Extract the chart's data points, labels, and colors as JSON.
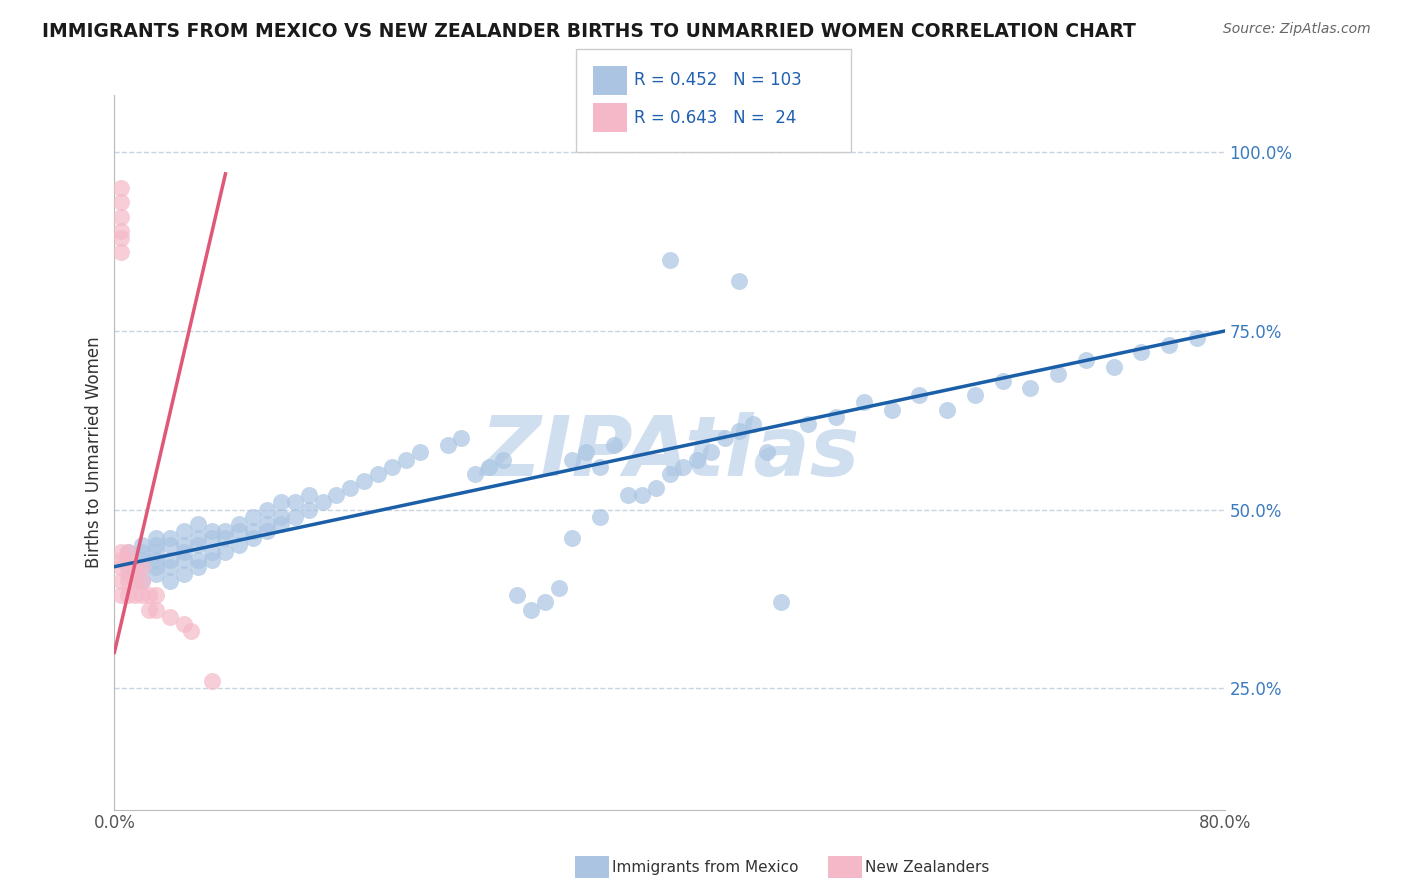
{
  "title": "IMMIGRANTS FROM MEXICO VS NEW ZEALANDER BIRTHS TO UNMARRIED WOMEN CORRELATION CHART",
  "source": "Source: ZipAtlas.com",
  "ylabel": "Births to Unmarried Women",
  "legend_label1": "Immigrants from Mexico",
  "legend_label2": "New Zealanders",
  "R1": 0.452,
  "N1": 103,
  "R2": 0.643,
  "N2": 24,
  "blue_color": "#aac4e2",
  "blue_line_color": "#1a5fa8",
  "pink_color": "#f5b8c8",
  "pink_line_color": "#e05878",
  "watermark": "ZIPAtlas",
  "watermark_color": "#d0dff0",
  "xlim": [
    0.0,
    0.8
  ],
  "ylim": [
    0.08,
    1.08
  ],
  "xtick_positions": [
    0.0,
    0.8
  ],
  "xtick_labels": [
    "0.0%",
    "80.0%"
  ],
  "ytick_values": [
    0.25,
    0.5,
    0.75,
    1.0
  ],
  "ytick_labels": [
    "25.0%",
    "50.0%",
    "75.0%",
    "100.0%"
  ],
  "grid_color": "#c8d4e0",
  "background": "#ffffff",
  "blue_scatter_x": [
    0.01,
    0.01,
    0.02,
    0.02,
    0.02,
    0.02,
    0.02,
    0.03,
    0.03,
    0.03,
    0.03,
    0.03,
    0.03,
    0.04,
    0.04,
    0.04,
    0.04,
    0.04,
    0.05,
    0.05,
    0.05,
    0.05,
    0.05,
    0.06,
    0.06,
    0.06,
    0.06,
    0.06,
    0.07,
    0.07,
    0.07,
    0.07,
    0.08,
    0.08,
    0.08,
    0.09,
    0.09,
    0.09,
    0.1,
    0.1,
    0.1,
    0.11,
    0.11,
    0.11,
    0.12,
    0.12,
    0.12,
    0.13,
    0.13,
    0.14,
    0.14,
    0.15,
    0.16,
    0.17,
    0.18,
    0.19,
    0.2,
    0.21,
    0.22,
    0.24,
    0.25,
    0.26,
    0.27,
    0.28,
    0.29,
    0.3,
    0.31,
    0.32,
    0.33,
    0.34,
    0.35,
    0.36,
    0.38,
    0.39,
    0.4,
    0.41,
    0.42,
    0.43,
    0.44,
    0.45,
    0.46,
    0.47,
    0.48,
    0.5,
    0.52,
    0.54,
    0.56,
    0.58,
    0.6,
    0.62,
    0.64,
    0.66,
    0.68,
    0.7,
    0.72,
    0.74,
    0.76,
    0.78,
    0.33,
    0.35,
    0.37,
    0.4,
    0.45
  ],
  "blue_scatter_y": [
    0.42,
    0.44,
    0.4,
    0.42,
    0.43,
    0.44,
    0.45,
    0.41,
    0.42,
    0.43,
    0.44,
    0.45,
    0.46,
    0.4,
    0.42,
    0.43,
    0.45,
    0.46,
    0.41,
    0.43,
    0.44,
    0.45,
    0.47,
    0.42,
    0.43,
    0.45,
    0.46,
    0.48,
    0.43,
    0.44,
    0.46,
    0.47,
    0.44,
    0.46,
    0.47,
    0.45,
    0.47,
    0.48,
    0.46,
    0.47,
    0.49,
    0.47,
    0.48,
    0.5,
    0.48,
    0.49,
    0.51,
    0.49,
    0.51,
    0.5,
    0.52,
    0.51,
    0.52,
    0.53,
    0.54,
    0.55,
    0.56,
    0.57,
    0.58,
    0.59,
    0.6,
    0.55,
    0.56,
    0.57,
    0.38,
    0.36,
    0.37,
    0.39,
    0.57,
    0.58,
    0.56,
    0.59,
    0.52,
    0.53,
    0.55,
    0.56,
    0.57,
    0.58,
    0.6,
    0.61,
    0.62,
    0.58,
    0.37,
    0.62,
    0.63,
    0.65,
    0.64,
    0.66,
    0.64,
    0.66,
    0.68,
    0.67,
    0.69,
    0.71,
    0.7,
    0.72,
    0.73,
    0.74,
    0.46,
    0.49,
    0.52,
    0.85,
    0.82
  ],
  "pink_scatter_x": [
    0.005,
    0.005,
    0.005,
    0.005,
    0.005,
    0.01,
    0.01,
    0.01,
    0.01,
    0.01,
    0.015,
    0.015,
    0.015,
    0.02,
    0.02,
    0.02,
    0.025,
    0.025,
    0.03,
    0.03,
    0.04,
    0.05,
    0.055,
    0.07
  ],
  "pink_scatter_y": [
    0.38,
    0.4,
    0.42,
    0.43,
    0.44,
    0.38,
    0.4,
    0.41,
    0.43,
    0.44,
    0.38,
    0.4,
    0.42,
    0.38,
    0.4,
    0.42,
    0.36,
    0.38,
    0.36,
    0.38,
    0.35,
    0.34,
    0.33,
    0.26
  ],
  "pink_outlier_x": [
    0.005,
    0.005,
    0.005,
    0.005,
    0.005,
    0.005
  ],
  "pink_outlier_y": [
    0.95,
    0.93,
    0.91,
    0.89,
    0.88,
    0.86
  ],
  "blue_line_x": [
    0.0,
    0.8
  ],
  "blue_line_y": [
    0.42,
    0.75
  ],
  "pink_line_x": [
    0.0,
    0.08
  ],
  "pink_line_y": [
    0.3,
    0.97
  ]
}
